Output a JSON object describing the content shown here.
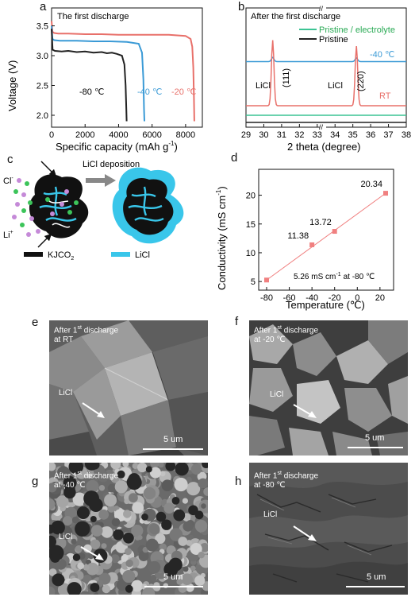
{
  "panels": {
    "a": {
      "label": "a",
      "chart_data": {
        "type": "line",
        "title": "The first discharge",
        "xlabel": "Specific capacity (mAh g",
        "xlabel_sup": "-1",
        "xlabel_end": ")",
        "ylabel": "Voltage (V)",
        "xlim": [
          0,
          9000
        ],
        "ylim": [
          1.8,
          3.8
        ],
        "xticks": [
          "0",
          "2000",
          "4000",
          "6000",
          "8000"
        ],
        "xtick_values": [
          0,
          2000,
          4000,
          6000,
          8000
        ],
        "yticks": [
          "2.0",
          "2.5",
          "3.0",
          "3.5"
        ],
        "ytick_values": [
          2.0,
          2.5,
          3.0,
          3.5
        ],
        "series": [
          {
            "name": "-20 ℃",
            "color": "#e8706a",
            "x": [
              0,
              50,
              150,
              400,
              1000,
              2000,
              3000,
              4000,
              5000,
              6000,
              7000,
              8000,
              8300,
              8400,
              8460,
              8500,
              8520
            ],
            "y": [
              3.58,
              3.4,
              3.38,
              3.37,
              3.37,
              3.36,
              3.36,
              3.35,
              3.35,
              3.35,
              3.35,
              3.33,
              3.28,
              3.15,
              2.8,
              2.3,
              1.9
            ]
          },
          {
            "name": "-40 ℃",
            "color": "#3a9ad6",
            "x": [
              0,
              50,
              150,
              500,
              1500,
              2500,
              3500,
              4500,
              5200,
              5400,
              5480,
              5520,
              5540
            ],
            "y": [
              3.5,
              3.28,
              3.26,
              3.25,
              3.25,
              3.24,
              3.24,
              3.23,
              3.2,
              3.05,
              2.6,
              2.1,
              1.9
            ]
          },
          {
            "name": "-80 ℃",
            "color": "#222222",
            "x": [
              0,
              60,
              200,
              600,
              1000,
              1500,
              2000,
              2500,
              3000,
              3300,
              3600,
              3900,
              4200,
              4350,
              4420,
              4460,
              4480
            ],
            "y": [
              3.45,
              3.1,
              3.08,
              3.07,
              3.08,
              3.06,
              3.07,
              3.05,
              3.06,
              3.04,
              3.05,
              3.03,
              3.0,
              2.85,
              2.5,
              2.1,
              1.9
            ]
          }
        ]
      }
    },
    "b": {
      "label": "b",
      "chart_data": {
        "type": "line",
        "title": "After the first discharge",
        "xlabel": "2 theta (degree)",
        "xticks": [
          "29",
          "30",
          "31",
          "32",
          "33",
          "34",
          "35",
          "36",
          "37",
          "38"
        ],
        "xtick_values": [
          29,
          30,
          31,
          32,
          33,
          34,
          35,
          36,
          37,
          38
        ],
        "legend": [
          "Pristine / electrolyte",
          "Pristine"
        ],
        "legend_colors": [
          "#3cc494",
          "#222222"
        ],
        "peak_labels": [
          "LiCl",
          "(111)",
          "LiCl",
          "(220)"
        ],
        "series_labels": [
          "-40 ℃",
          "RT"
        ],
        "series": [
          {
            "name": "-40 ℃",
            "color": "#3a9ad6",
            "offset": 0.55,
            "peaks": [
              [
                30.5,
                0.035
              ],
              [
                35.2,
                0.03
              ]
            ]
          },
          {
            "name": "RT",
            "color": "#e8706a",
            "offset": 0.18,
            "peaks": [
              [
                30.5,
                0.55
              ],
              [
                35.2,
                0.5
              ]
            ]
          },
          {
            "name": "Pristine / electrolyte",
            "color": "#3cc494",
            "offset": 0.1,
            "peaks": []
          },
          {
            "name": "Pristine",
            "color": "#222222",
            "offset": 0.04,
            "peaks": []
          }
        ]
      }
    },
    "c": {
      "label": "c",
      "title": "LiCl deposition",
      "ions": [
        "Cl",
        "Li"
      ],
      "ion_sup": [
        "-",
        "+"
      ],
      "legend": [
        "KJCO",
        "LiCl"
      ],
      "legend_sub": "2",
      "colors": {
        "carbon": "#111111",
        "licl": "#39c6ea",
        "cl": "#3cc45a",
        "li": "#c58ad8",
        "arrow": "#888888"
      }
    },
    "d": {
      "label": "d",
      "chart_data": {
        "type": "scatter",
        "xlabel": "Temperature (℃)",
        "ylabel": "Conductivity (mS cm",
        "ylabel_sup": "-1",
        "ylabel_end": ")",
        "xlim": [
          -87,
          32
        ],
        "ylim": [
          3.5,
          24.5
        ],
        "xticks": [
          "-80",
          "-60",
          "-40",
          "-20",
          "0",
          "20"
        ],
        "xtick_values": [
          -80,
          -60,
          -40,
          -20,
          0,
          20
        ],
        "yticks": [
          "5",
          "10",
          "15",
          "20"
        ],
        "ytick_values": [
          5,
          10,
          15,
          20
        ],
        "x": [
          -80,
          -40,
          -20,
          25
        ],
        "y": [
          5.26,
          11.38,
          13.72,
          20.34
        ],
        "labels": [
          "",
          "11.38",
          "13.72",
          "20.34"
        ],
        "annotation_a": "5.26 mS cm",
        "annotation_sup": "-1",
        "annotation_b": "at -80 ℃",
        "color": "#f08080"
      }
    },
    "e": {
      "label": "e",
      "line1": "After 1",
      "sup": "st",
      "line1_end": " discharge",
      "line2": "at RT",
      "phase": "LiCl",
      "scale": "5 um"
    },
    "f": {
      "label": "f",
      "line1": "After 1",
      "sup": "st",
      "line1_end": " discharge",
      "line2": "at -20 ℃",
      "phase": "LiCl",
      "scale": "5 um"
    },
    "g": {
      "label": "g",
      "line1": "After 1",
      "sup": "st",
      "line1_end": " discharge",
      "line2": "at -40 ℃",
      "phase": "LiCl",
      "scale": "5 um"
    },
    "h": {
      "label": "h",
      "line1": "After 1",
      "sup": "st",
      "line1_end": " discharge",
      "line2": "at -80 ℃",
      "phase": "LiCl",
      "scale": "5 um"
    }
  }
}
